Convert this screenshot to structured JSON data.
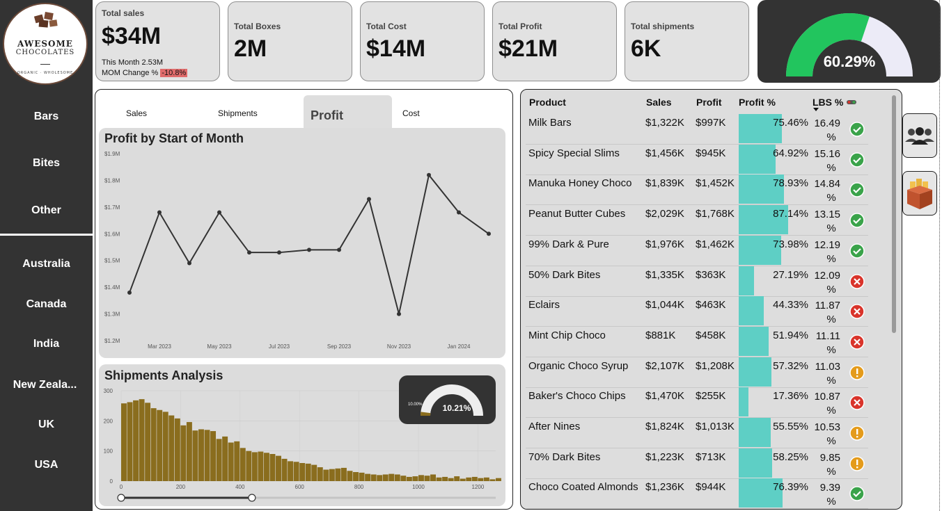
{
  "brand": {
    "line1": "AWESOME",
    "line2": "CHOCOLATES",
    "tagline": "ORGANIC · WHOLESOME"
  },
  "sidebar": {
    "products": [
      "Bars",
      "Bites",
      "Other"
    ],
    "countries": [
      "Australia",
      "Canada",
      "India",
      "New Zeala...",
      "UK",
      "USA"
    ]
  },
  "cards": {
    "total_sales": {
      "label": "Total sales",
      "value": "$34M",
      "this_month": "This Month 2.53M",
      "mom_label": "MOM Change %",
      "mom_value": "-10.8%"
    },
    "total_boxes": {
      "label": "Total Boxes",
      "value": "2M"
    },
    "total_cost": {
      "label": "Total Cost",
      "value": "$14M"
    },
    "total_profit": {
      "label": "Total Profit",
      "value": "$21M"
    },
    "total_shipments": {
      "label": "Total shipments",
      "value": "6K"
    }
  },
  "profit_gauge": {
    "value_text": "60.29%",
    "fraction": 0.6029,
    "colors": {
      "fill": "#22c55e",
      "track": "#ecebf7"
    }
  },
  "tabs": {
    "sales": "Sales",
    "shipments": "Shipments",
    "profit": "Profit",
    "cost": "Cost",
    "active": "Profit"
  },
  "profit_chart_title": "Profit by Start of Month",
  "shipments_title": "Shipments Analysis",
  "mini_gauge": {
    "min_label": "10.00%",
    "value_text": "10.21%",
    "fraction": 0.0021,
    "colors": {
      "fill": "#8a6d1e",
      "track": "#eeeeee"
    }
  },
  "chart_data": [
    {
      "type": "line",
      "title": "Profit by Start of Month",
      "x": [
        "Feb 2023",
        "Mar 2023",
        "Apr 2023",
        "May 2023",
        "Jun 2023",
        "Jul 2023",
        "Aug 2023",
        "Sep 2023",
        "Oct 2023",
        "Nov 2023",
        "Dec 2023",
        "Jan 2024",
        "Feb 2024"
      ],
      "values": [
        1.38,
        1.68,
        1.49,
        1.68,
        1.53,
        1.53,
        1.54,
        1.54,
        1.73,
        1.3,
        1.82,
        1.68,
        1.6
      ],
      "x_ticks": [
        "Mar 2023",
        "May 2023",
        "Jul 2023",
        "Sep 2023",
        "Nov 2023",
        "Jan 2024"
      ],
      "y_ticks": [
        "$1.2M",
        "$1.3M",
        "$1.4M",
        "$1.5M",
        "$1.6M",
        "$1.7M",
        "$1.8M",
        "$1.9M"
      ],
      "ylim": [
        1.2,
        1.9
      ],
      "color": "#333333"
    },
    {
      "type": "bar",
      "title": "Shipments Analysis",
      "bin_width": 20,
      "values": [
        258,
        262,
        268,
        272,
        260,
        242,
        236,
        230,
        218,
        208,
        185,
        196,
        168,
        172,
        170,
        166,
        140,
        148,
        128,
        132,
        110,
        100,
        96,
        98,
        94,
        90,
        84,
        74,
        66,
        64,
        60,
        58,
        54,
        46,
        38,
        40,
        42,
        44,
        34,
        30,
        28,
        24,
        22,
        20,
        22,
        24,
        22,
        18,
        14,
        16,
        20,
        18,
        22,
        12,
        14,
        10,
        16,
        8,
        12,
        14,
        10,
        12,
        6,
        10
      ],
      "x_ticks": [
        "0",
        "200",
        "400",
        "600",
        "800",
        "1000",
        "1200"
      ],
      "xlim": [
        0,
        1260
      ],
      "y_ticks": [
        "0",
        "100",
        "200",
        "300"
      ],
      "ylim": [
        0,
        300
      ],
      "color": "#8a6d1e",
      "slider_range": [
        0,
        440
      ]
    }
  ],
  "table": {
    "headers": {
      "product": "Product",
      "sales": "Sales",
      "profit": "Profit",
      "profit_pct": "Profit %",
      "lbs_pct": "LBS %"
    },
    "rows": [
      {
        "product": "Milk Bars",
        "sales": "$1,322K",
        "profit": "$997K",
        "profit_pct": "75.46%",
        "profit_frac": 0.7546,
        "lbs_line1": "16.49",
        "lbs_line2": "%",
        "status": "check-icon"
      },
      {
        "product": "Spicy Special Slims",
        "sales": "$1,456K",
        "profit": "$945K",
        "profit_pct": "64.92%",
        "profit_frac": 0.6492,
        "lbs_line1": "15.16",
        "lbs_line2": "%",
        "status": "check-icon"
      },
      {
        "product": "Manuka Honey Choco",
        "sales": "$1,839K",
        "profit": "$1,452K",
        "profit_pct": "78.93%",
        "profit_frac": 0.7893,
        "lbs_line1": "14.84",
        "lbs_line2": "%",
        "status": "check-icon"
      },
      {
        "product": "Peanut Butter Cubes",
        "sales": "$2,029K",
        "profit": "$1,768K",
        "profit_pct": "87.14%",
        "profit_frac": 0.8714,
        "lbs_line1": "13.15",
        "lbs_line2": "%",
        "status": "check-icon"
      },
      {
        "product": "99% Dark & Pure",
        "sales": "$1,976K",
        "profit": "$1,462K",
        "profit_pct": "73.98%",
        "profit_frac": 0.7398,
        "lbs_line1": "12.19",
        "lbs_line2": "%",
        "status": "check-icon"
      },
      {
        "product": "50% Dark Bites",
        "sales": "$1,335K",
        "profit": "$363K",
        "profit_pct": "27.19%",
        "profit_frac": 0.2719,
        "lbs_line1": "12.09",
        "lbs_line2": "%",
        "status": "cross-icon"
      },
      {
        "product": "Eclairs",
        "sales": "$1,044K",
        "profit": "$463K",
        "profit_pct": "44.33%",
        "profit_frac": 0.4433,
        "lbs_line1": "11.87",
        "lbs_line2": "%",
        "status": "cross-icon"
      },
      {
        "product": "Mint Chip Choco",
        "sales": "$881K",
        "profit": "$458K",
        "profit_pct": "51.94%",
        "profit_frac": 0.5194,
        "lbs_line1": "11.11",
        "lbs_line2": "%",
        "status": "cross-icon"
      },
      {
        "product": "Organic Choco Syrup",
        "sales": "$2,107K",
        "profit": "$1,208K",
        "profit_pct": "57.32%",
        "profit_frac": 0.5732,
        "lbs_line1": "11.03",
        "lbs_line2": "%",
        "status": "warning-icon"
      },
      {
        "product": "Baker's Choco Chips",
        "sales": "$1,470K",
        "profit": "$255K",
        "profit_pct": "17.36%",
        "profit_frac": 0.1736,
        "lbs_line1": "10.87",
        "lbs_line2": "%",
        "status": "cross-icon"
      },
      {
        "product": "After Nines",
        "sales": "$1,824K",
        "profit": "$1,013K",
        "profit_pct": "55.55%",
        "profit_frac": 0.5555,
        "lbs_line1": "10.53",
        "lbs_line2": "%",
        "status": "warning-icon"
      },
      {
        "product": "70% Dark Bites",
        "sales": "$1,223K",
        "profit": "$713K",
        "profit_pct": "58.25%",
        "profit_frac": 0.5825,
        "lbs_line1": "9.85",
        "lbs_line2": "%",
        "status": "warning-icon"
      },
      {
        "product": "Choco Coated Almonds",
        "sales": "$1,236K",
        "profit": "$944K",
        "profit_pct": "76.39%",
        "profit_frac": 0.7639,
        "lbs_line1": "9.39",
        "lbs_line2": "%",
        "status": "check-icon"
      }
    ],
    "status_colors": {
      "check-icon": "#3aa34a",
      "cross-icon": "#d9342b",
      "warning-icon": "#e49b1b"
    },
    "bar_color": "#5ecfc5"
  },
  "side_buttons": {
    "top_icon": "people-icon",
    "bottom_icon": "box-icon"
  }
}
